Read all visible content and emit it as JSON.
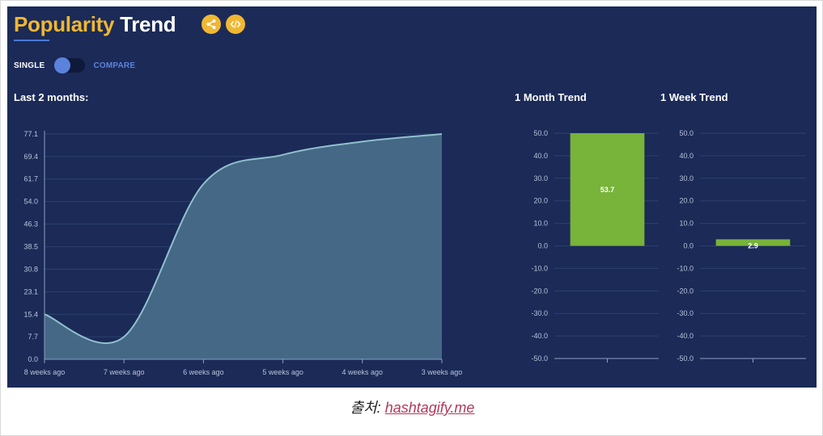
{
  "header": {
    "title_part1": "Popularity",
    "title_part2": "Trend",
    "icons": [
      "share-icon",
      "code-icon"
    ]
  },
  "mode_toggle": {
    "single_label": "SINGLE",
    "compare_label": "COMPARE",
    "selected": "SINGLE"
  },
  "caption": {
    "prefix": "출처:",
    "link_text": "hashtagify.me"
  },
  "colors": {
    "background": "#1b2a57",
    "accent": "#f0b733",
    "line": "#8fc1cd",
    "area": "#4a6f8c",
    "bar": "#78b33a"
  },
  "chart_data": [
    {
      "type": "area",
      "title": "Last 2 months:",
      "categories": [
        "8 weeks ago",
        "7 weeks ago",
        "6 weeks ago",
        "5 weeks ago",
        "4 weeks ago",
        "3 weeks ago"
      ],
      "values": [
        15.4,
        7.7,
        60.0,
        70.0,
        74.5,
        77.1
      ],
      "y_ticks": [
        "0.0",
        "7.7",
        "15.4",
        "23.1",
        "30.8",
        "38.5",
        "46.3",
        "54.0",
        "61.7",
        "69.4",
        "77.1"
      ],
      "ylim": [
        0,
        77.1
      ],
      "grid": true
    },
    {
      "type": "bar",
      "title": "1 Month Trend",
      "values": [
        53.7
      ],
      "data_labels": [
        "53.7"
      ],
      "y_ticks": [
        "50.0",
        "40.0",
        "30.0",
        "20.0",
        "10.0",
        "0.0",
        "-10.0",
        "-20.0",
        "-30.0",
        "-40.0",
        "-50.0"
      ],
      "ylim": [
        -50,
        50
      ],
      "grid": true
    },
    {
      "type": "bar",
      "title": "1 Week Trend",
      "values": [
        2.9
      ],
      "data_labels": [
        "2.9"
      ],
      "y_ticks": [
        "50.0",
        "40.0",
        "30.0",
        "20.0",
        "10.0",
        "0.0",
        "-10.0",
        "-20.0",
        "-30.0",
        "-40.0",
        "-50.0"
      ],
      "ylim": [
        -50,
        50
      ],
      "grid": true
    }
  ]
}
